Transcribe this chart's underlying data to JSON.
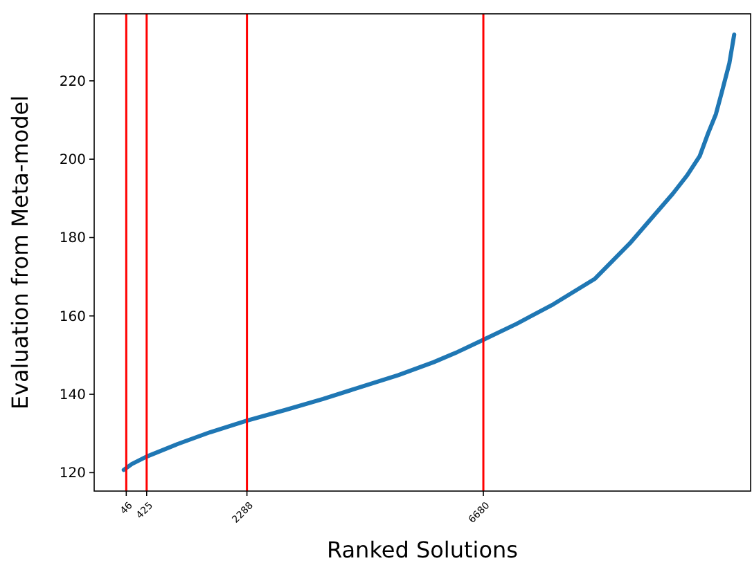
{
  "chart_data": {
    "type": "line",
    "xlabel": "Ranked Solutions",
    "ylabel": "Evaluation from Meta-model",
    "x": [
      0,
      150,
      425,
      1000,
      1600,
      2288,
      3000,
      3700,
      4387,
      5100,
      5757,
      6200,
      6680,
      7300,
      7983,
      8754,
      9400,
      9866,
      10200,
      10467,
      10700,
      10852,
      11000,
      11110,
      11250,
      11340
    ],
    "series": [
      {
        "color": "#1f77b4",
        "values": [
          120.7,
          122.2,
          124.1,
          127.3,
          130.3,
          133.3,
          136.0,
          138.8,
          141.8,
          144.9,
          148.2,
          150.8,
          153.9,
          158.0,
          163.0,
          169.5,
          178.5,
          185.9,
          191.2,
          195.9,
          200.8,
          206.5,
          211.5,
          217.1,
          224.5,
          231.8
        ]
      }
    ],
    "xlim": [
      -550,
      11645
    ],
    "ylim": [
      115.3,
      237.1
    ],
    "xticks": [
      46,
      425,
      2288,
      6680
    ],
    "yticks": [
      120,
      140,
      160,
      180,
      200,
      220
    ],
    "ref_lines": [
      {
        "axis": "x",
        "value": 46,
        "color": "#ff0000"
      },
      {
        "axis": "x",
        "value": 425,
        "color": "#ff0000"
      },
      {
        "axis": "x",
        "value": 2288,
        "color": "#ff0000"
      },
      {
        "axis": "x",
        "value": 6680,
        "color": "#ff0000"
      }
    ],
    "grid": false
  }
}
